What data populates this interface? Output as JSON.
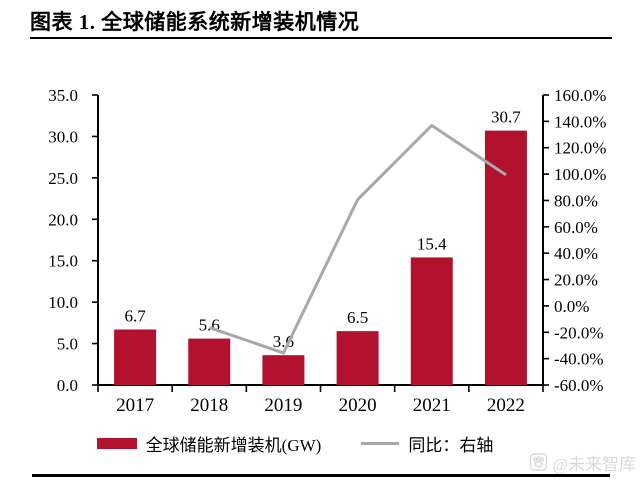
{
  "page": {
    "title": "图表 1. 全球储能系统新增装机情况",
    "watermark_text": "@未来智库"
  },
  "legend": [
    {
      "label": "全球储能新增装机(GW)",
      "swatch": "bar"
    },
    {
      "label": "同比：右轴",
      "swatch": "line"
    }
  ],
  "chart_data": {
    "type": "bar",
    "categories": [
      "2017",
      "2018",
      "2019",
      "2020",
      "2021",
      "2022"
    ],
    "series": [
      {
        "name": "全球储能新增装机(GW)",
        "type": "bar",
        "axis": "left",
        "values": [
          6.7,
          5.6,
          3.6,
          6.5,
          15.4,
          30.7
        ],
        "value_labels": [
          "6.7",
          "5.6",
          "3.6",
          "6.5",
          "15.4",
          "30.7"
        ],
        "color": "#B2122D"
      },
      {
        "name": "同比：右轴",
        "type": "line",
        "axis": "right",
        "values": [
          null,
          -16.4,
          -35.7,
          80.6,
          136.9,
          99.4
        ],
        "color": "#A8A8A8"
      }
    ],
    "left_axis": {
      "min": 0,
      "max": 35,
      "step": 5,
      "tick_labels": [
        "0.0",
        "5.0",
        "10.0",
        "15.0",
        "20.0",
        "25.0",
        "30.0",
        "35.0"
      ]
    },
    "right_axis": {
      "min": -60,
      "max": 160,
      "step": 20,
      "tick_labels": [
        "-60.0%",
        "-40.0%",
        "-20.0%",
        "0.0%",
        "20.0%",
        "40.0%",
        "60.0%",
        "80.0%",
        "100.0%",
        "120.0%",
        "140.0%",
        "160.0%"
      ]
    },
    "grid": false,
    "legend_position": "bottom",
    "axis_color": "#000000",
    "text_color": "#000000"
  }
}
